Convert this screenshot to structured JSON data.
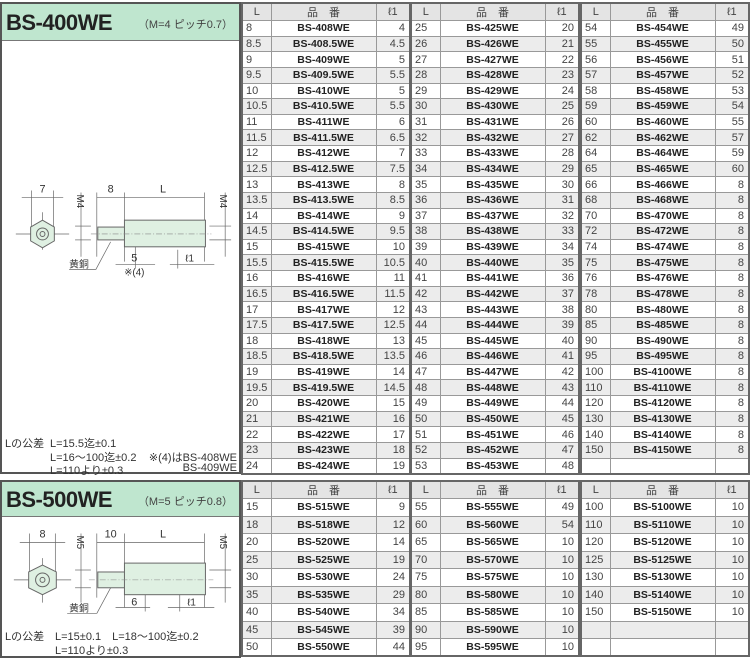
{
  "headers": {
    "l": "L",
    "name": "品　番",
    "l1": "ℓ1"
  },
  "bs400": {
    "title": "BS-400WE",
    "spec": "（M=4 ピッチ0.7）",
    "drawing": {
      "hex": "7",
      "thread": "M4",
      "stud": "8",
      "length": "L",
      "thread_right": "M4",
      "shoulder": "5",
      "shoulder_note": "※(4)",
      "l1": "ℓ1",
      "material": "黄銅"
    },
    "tolerance_label": "Lの公差",
    "tolerance": [
      "L=15.5迄±0.1",
      "L=16～100迄±0.2",
      "L=110より±0.3"
    ],
    "note": [
      "※(4)はBS-408WE",
      "BS-409WE"
    ],
    "tables": [
      [
        [
          "8",
          "BS-408WE",
          "4"
        ],
        [
          "8.5",
          "BS-408.5WE",
          "4.5"
        ],
        [
          "9",
          "BS-409WE",
          "5"
        ],
        [
          "9.5",
          "BS-409.5WE",
          "5.5"
        ],
        [
          "10",
          "BS-410WE",
          "5"
        ],
        [
          "10.5",
          "BS-410.5WE",
          "5.5"
        ],
        [
          "11",
          "BS-411WE",
          "6"
        ],
        [
          "11.5",
          "BS-411.5WE",
          "6.5"
        ],
        [
          "12",
          "BS-412WE",
          "7"
        ],
        [
          "12.5",
          "BS-412.5WE",
          "7.5"
        ],
        [
          "13",
          "BS-413WE",
          "8"
        ],
        [
          "13.5",
          "BS-413.5WE",
          "8.5"
        ],
        [
          "14",
          "BS-414WE",
          "9"
        ],
        [
          "14.5",
          "BS-414.5WE",
          "9.5"
        ],
        [
          "15",
          "BS-415WE",
          "10"
        ],
        [
          "15.5",
          "BS-415.5WE",
          "10.5"
        ],
        [
          "16",
          "BS-416WE",
          "11"
        ],
        [
          "16.5",
          "BS-416.5WE",
          "11.5"
        ],
        [
          "17",
          "BS-417WE",
          "12"
        ],
        [
          "17.5",
          "BS-417.5WE",
          "12.5"
        ],
        [
          "18",
          "BS-418WE",
          "13"
        ],
        [
          "18.5",
          "BS-418.5WE",
          "13.5"
        ],
        [
          "19",
          "BS-419WE",
          "14"
        ],
        [
          "19.5",
          "BS-419.5WE",
          "14.5"
        ],
        [
          "20",
          "BS-420WE",
          "15"
        ],
        [
          "21",
          "BS-421WE",
          "16"
        ],
        [
          "22",
          "BS-422WE",
          "17"
        ],
        [
          "23",
          "BS-423WE",
          "18"
        ],
        [
          "24",
          "BS-424WE",
          "19"
        ]
      ],
      [
        [
          "25",
          "BS-425WE",
          "20"
        ],
        [
          "26",
          "BS-426WE",
          "21"
        ],
        [
          "27",
          "BS-427WE",
          "22"
        ],
        [
          "28",
          "BS-428WE",
          "23"
        ],
        [
          "29",
          "BS-429WE",
          "24"
        ],
        [
          "30",
          "BS-430WE",
          "25"
        ],
        [
          "31",
          "BS-431WE",
          "26"
        ],
        [
          "32",
          "BS-432WE",
          "27"
        ],
        [
          "33",
          "BS-433WE",
          "28"
        ],
        [
          "34",
          "BS-434WE",
          "29"
        ],
        [
          "35",
          "BS-435WE",
          "30"
        ],
        [
          "36",
          "BS-436WE",
          "31"
        ],
        [
          "37",
          "BS-437WE",
          "32"
        ],
        [
          "38",
          "BS-438WE",
          "33"
        ],
        [
          "39",
          "BS-439WE",
          "34"
        ],
        [
          "40",
          "BS-440WE",
          "35"
        ],
        [
          "41",
          "BS-441WE",
          "36"
        ],
        [
          "42",
          "BS-442WE",
          "37"
        ],
        [
          "43",
          "BS-443WE",
          "38"
        ],
        [
          "44",
          "BS-444WE",
          "39"
        ],
        [
          "45",
          "BS-445WE",
          "40"
        ],
        [
          "46",
          "BS-446WE",
          "41"
        ],
        [
          "47",
          "BS-447WE",
          "42"
        ],
        [
          "48",
          "BS-448WE",
          "43"
        ],
        [
          "49",
          "BS-449WE",
          "44"
        ],
        [
          "50",
          "BS-450WE",
          "45"
        ],
        [
          "51",
          "BS-451WE",
          "46"
        ],
        [
          "52",
          "BS-452WE",
          "47"
        ],
        [
          "53",
          "BS-453WE",
          "48"
        ]
      ],
      [
        [
          "54",
          "BS-454WE",
          "49"
        ],
        [
          "55",
          "BS-455WE",
          "50"
        ],
        [
          "56",
          "BS-456WE",
          "51"
        ],
        [
          "57",
          "BS-457WE",
          "52"
        ],
        [
          "58",
          "BS-458WE",
          "53"
        ],
        [
          "59",
          "BS-459WE",
          "54"
        ],
        [
          "60",
          "BS-460WE",
          "55"
        ],
        [
          "62",
          "BS-462WE",
          "57"
        ],
        [
          "64",
          "BS-464WE",
          "59"
        ],
        [
          "65",
          "BS-465WE",
          "60"
        ],
        [
          "66",
          "BS-466WE",
          "8"
        ],
        [
          "68",
          "BS-468WE",
          "8"
        ],
        [
          "70",
          "BS-470WE",
          "8"
        ],
        [
          "72",
          "BS-472WE",
          "8"
        ],
        [
          "74",
          "BS-474WE",
          "8"
        ],
        [
          "75",
          "BS-475WE",
          "8"
        ],
        [
          "76",
          "BS-476WE",
          "8"
        ],
        [
          "78",
          "BS-478WE",
          "8"
        ],
        [
          "80",
          "BS-480WE",
          "8"
        ],
        [
          "85",
          "BS-485WE",
          "8"
        ],
        [
          "90",
          "BS-490WE",
          "8"
        ],
        [
          "95",
          "BS-495WE",
          "8"
        ],
        [
          "100",
          "BS-4100WE",
          "8"
        ],
        [
          "110",
          "BS-4110WE",
          "8"
        ],
        [
          "120",
          "BS-4120WE",
          "8"
        ],
        [
          "130",
          "BS-4130WE",
          "8"
        ],
        [
          "140",
          "BS-4140WE",
          "8"
        ],
        [
          "150",
          "BS-4150WE",
          "8"
        ],
        [
          "",
          "",
          ""
        ]
      ]
    ]
  },
  "bs500": {
    "title": "BS-500WE",
    "spec": "（M=5 ピッチ0.8）",
    "drawing": {
      "hex": "8",
      "thread": "M5",
      "stud": "10",
      "length": "L",
      "thread_right": "M5",
      "shoulder": "6",
      "l1": "ℓ1",
      "material": "黄銅"
    },
    "tolerance_label": "Lの公差",
    "tolerance": [
      "L=15±0.1　L=18～100迄±0.2",
      "L=110より±0.3"
    ],
    "tables": [
      [
        [
          "15",
          "BS-515WE",
          "9"
        ],
        [
          "18",
          "BS-518WE",
          "12"
        ],
        [
          "20",
          "BS-520WE",
          "14"
        ],
        [
          "25",
          "BS-525WE",
          "19"
        ],
        [
          "30",
          "BS-530WE",
          "24"
        ],
        [
          "35",
          "BS-535WE",
          "29"
        ],
        [
          "40",
          "BS-540WE",
          "34"
        ],
        [
          "45",
          "BS-545WE",
          "39"
        ],
        [
          "50",
          "BS-550WE",
          "44"
        ]
      ],
      [
        [
          "55",
          "BS-555WE",
          "49"
        ],
        [
          "60",
          "BS-560WE",
          "54"
        ],
        [
          "65",
          "BS-565WE",
          "10"
        ],
        [
          "70",
          "BS-570WE",
          "10"
        ],
        [
          "75",
          "BS-575WE",
          "10"
        ],
        [
          "80",
          "BS-580WE",
          "10"
        ],
        [
          "85",
          "BS-585WE",
          "10"
        ],
        [
          "90",
          "BS-590WE",
          "10"
        ],
        [
          "95",
          "BS-595WE",
          "10"
        ]
      ],
      [
        [
          "100",
          "BS-5100WE",
          "10"
        ],
        [
          "110",
          "BS-5110WE",
          "10"
        ],
        [
          "120",
          "BS-5120WE",
          "10"
        ],
        [
          "125",
          "BS-5125WE",
          "10"
        ],
        [
          "130",
          "BS-5130WE",
          "10"
        ],
        [
          "140",
          "BS-5140WE",
          "10"
        ],
        [
          "150",
          "BS-5150WE",
          "10"
        ],
        [
          "",
          "",
          ""
        ],
        [
          "",
          "",
          ""
        ]
      ]
    ]
  },
  "colors": {
    "header_green": "#bfe6cf",
    "row_shade": "#ececec",
    "part_fill": "#dff0e2"
  }
}
